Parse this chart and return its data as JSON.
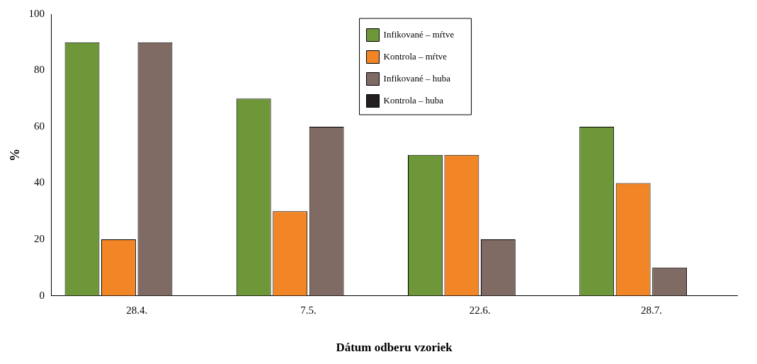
{
  "chart_data": {
    "type": "bar",
    "xlabel": "Dátum odberu vzoriek",
    "ylabel": "%",
    "categories": [
      "28.4.",
      "7.5.",
      "22.6.",
      "28.7."
    ],
    "series": [
      {
        "name": "Infikované – mŕtve",
        "color": "#6e973a",
        "values": [
          90,
          70,
          50,
          60
        ]
      },
      {
        "name": "Kontrola – mŕtve",
        "color": "#f28526",
        "values": [
          20,
          30,
          50,
          40
        ]
      },
      {
        "name": "Infikované – huba",
        "color": "#806a64",
        "values": [
          90,
          60,
          20,
          10
        ]
      },
      {
        "name": "Kontrola – huba",
        "color": "#231f20",
        "values": [
          0,
          0,
          0,
          0
        ]
      }
    ],
    "ylim": [
      0,
      100
    ],
    "yticks": [
      0,
      20,
      40,
      60,
      80,
      100
    ],
    "grid": false,
    "legend": "top"
  }
}
